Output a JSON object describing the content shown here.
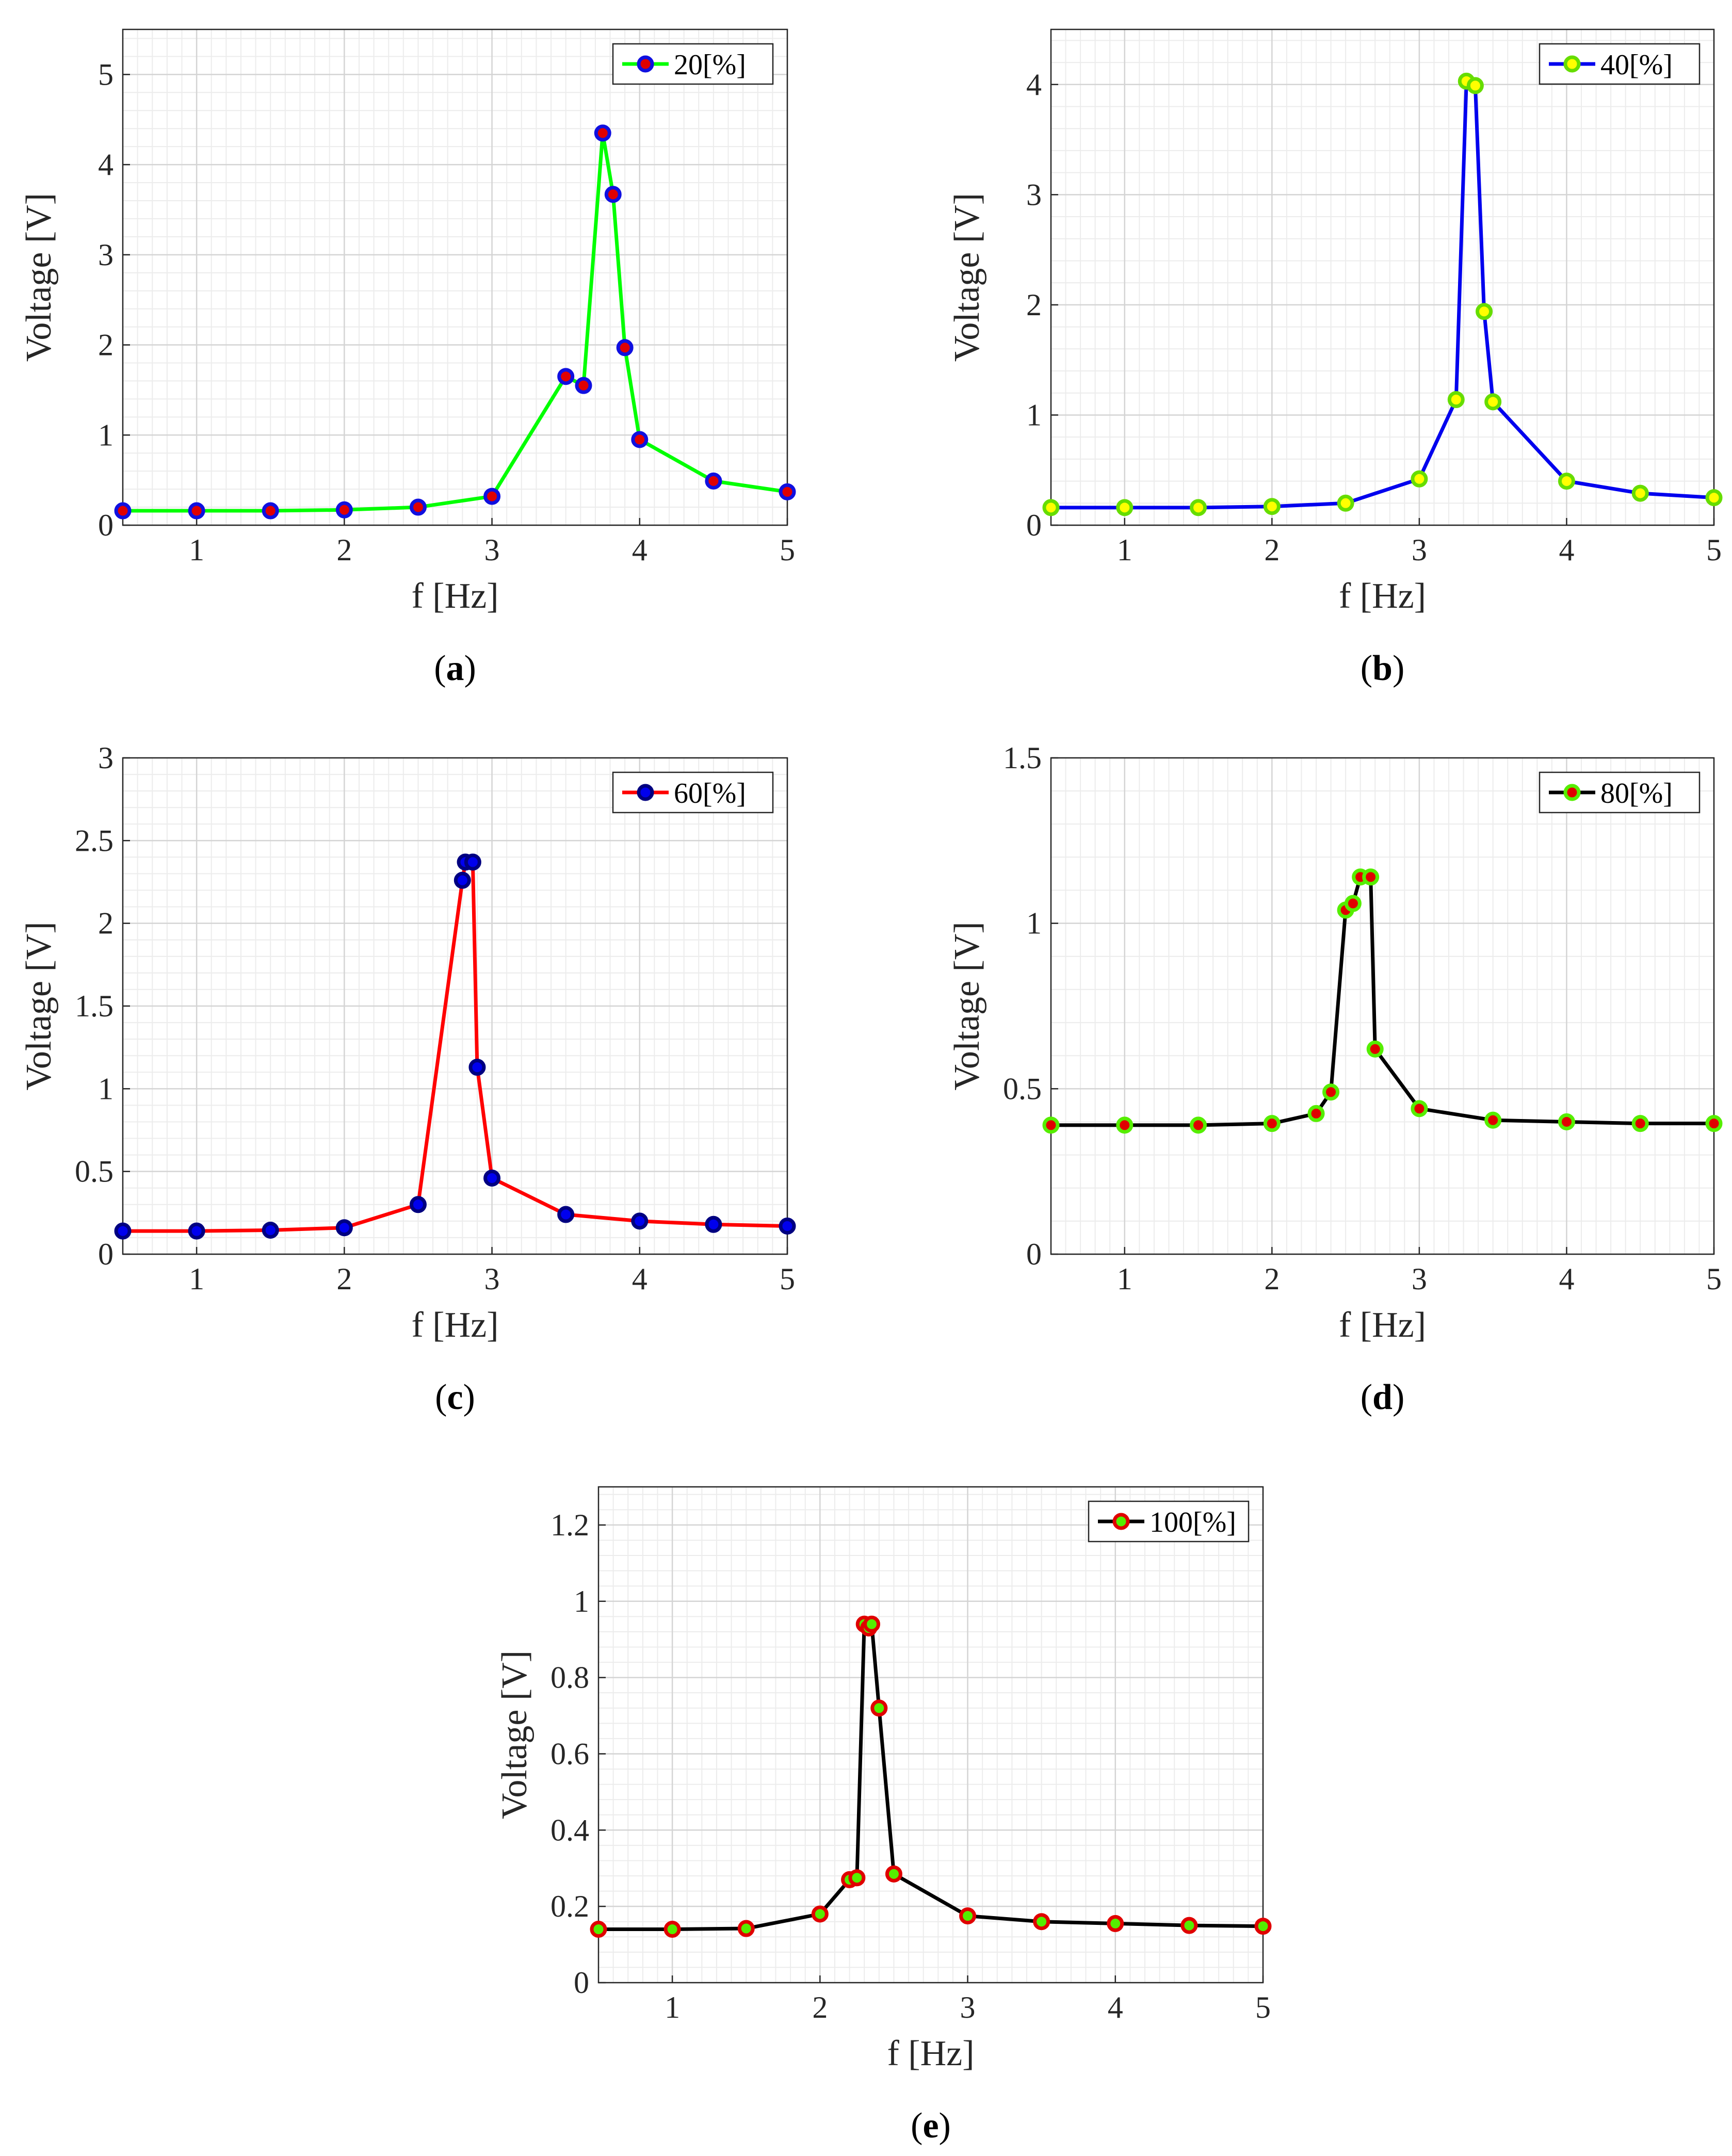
{
  "chart_data": [
    {
      "type": "line",
      "caption_letter": "a",
      "xlabel": "f [Hz]",
      "ylabel": "Voltage [V]",
      "xlim": [
        0.5,
        5
      ],
      "ylim": [
        0,
        5.5
      ],
      "xticks": [
        1,
        2,
        3,
        4,
        5
      ],
      "yticks": [
        0,
        1,
        2,
        3,
        4,
        5
      ],
      "grid": true,
      "legend_position": "top-right",
      "series": [
        {
          "name": "20[%]",
          "line_color": "#00ff00",
          "marker_face": "#e00000",
          "marker_edge": "#1010e0",
          "x": [
            0.5,
            1,
            1.5,
            2,
            2.5,
            3,
            3.5,
            3.62,
            3.75,
            3.82,
            3.9,
            4,
            4.5,
            5
          ],
          "y": [
            0.16,
            0.16,
            0.16,
            0.17,
            0.2,
            0.32,
            1.65,
            1.55,
            4.35,
            3.67,
            1.97,
            0.95,
            0.49,
            0.37
          ]
        }
      ]
    },
    {
      "type": "line",
      "caption_letter": "b",
      "xlabel": "f [Hz]",
      "ylabel": "Voltage [V]",
      "xlim": [
        0.5,
        5
      ],
      "ylim": [
        0,
        4.5
      ],
      "xticks": [
        1,
        2,
        3,
        4,
        5
      ],
      "yticks": [
        0,
        1,
        2,
        3,
        4
      ],
      "grid": true,
      "legend_position": "top-right",
      "series": [
        {
          "name": "40[%]",
          "line_color": "#0000ee",
          "marker_face": "#ffff00",
          "marker_edge": "#66dd00",
          "x": [
            0.5,
            1,
            1.5,
            2,
            2.5,
            3,
            3.25,
            3.32,
            3.38,
            3.44,
            3.5,
            4,
            4.5,
            5
          ],
          "y": [
            0.16,
            0.16,
            0.16,
            0.17,
            0.2,
            0.42,
            1.14,
            4.03,
            3.99,
            1.94,
            1.12,
            0.4,
            0.29,
            0.25
          ]
        }
      ]
    },
    {
      "type": "line",
      "caption_letter": "c",
      "xlabel": "f [Hz]",
      "ylabel": "Voltage [V]",
      "xlim": [
        0.5,
        5
      ],
      "ylim": [
        0,
        3
      ],
      "xticks": [
        1,
        2,
        3,
        4,
        5
      ],
      "yticks": [
        0,
        0.5,
        1,
        1.5,
        2,
        2.5,
        3
      ],
      "grid": true,
      "legend_position": "top-right",
      "series": [
        {
          "name": "60[%]",
          "line_color": "#ff0000",
          "marker_face": "#0000ee",
          "marker_edge": "#000080",
          "x": [
            0.5,
            1,
            1.5,
            2,
            2.5,
            2.8,
            2.82,
            2.87,
            2.9,
            3,
            3.5,
            4,
            4.5,
            5
          ],
          "y": [
            0.14,
            0.14,
            0.145,
            0.16,
            0.3,
            2.26,
            2.37,
            2.37,
            1.13,
            0.46,
            0.24,
            0.2,
            0.18,
            0.17
          ]
        }
      ]
    },
    {
      "type": "line",
      "caption_letter": "d",
      "xlabel": "f [Hz]",
      "ylabel": "Voltage [V]",
      "xlim": [
        0.5,
        5
      ],
      "ylim": [
        0,
        1.5
      ],
      "xticks": [
        1,
        2,
        3,
        4,
        5
      ],
      "yticks": [
        0,
        0.5,
        1,
        1.5
      ],
      "grid": true,
      "legend_position": "top-right",
      "series": [
        {
          "name": "80[%]",
          "line_color": "#000000",
          "marker_face": "#e00000",
          "marker_edge": "#55ee00",
          "x": [
            0.5,
            1,
            1.5,
            2,
            2.3,
            2.4,
            2.5,
            2.55,
            2.6,
            2.67,
            2.7,
            3,
            3.5,
            4,
            4.5,
            5
          ],
          "y": [
            0.39,
            0.39,
            0.39,
            0.395,
            0.425,
            0.49,
            1.04,
            1.06,
            1.14,
            1.14,
            0.62,
            0.44,
            0.405,
            0.4,
            0.395,
            0.395
          ]
        }
      ]
    },
    {
      "type": "line",
      "caption_letter": "e",
      "xlabel": "f [Hz]",
      "ylabel": "Voltage [V]",
      "xlim": [
        0.5,
        5
      ],
      "ylim": [
        0,
        1.3
      ],
      "xticks": [
        1,
        2,
        3,
        4,
        5
      ],
      "yticks": [
        0,
        0.2,
        0.4,
        0.6,
        0.8,
        1,
        1.2
      ],
      "grid": true,
      "legend_position": "top-right",
      "series": [
        {
          "name": "100[%]",
          "line_color": "#000000",
          "marker_face": "#55ee00",
          "marker_edge": "#e00000",
          "x": [
            0.5,
            1,
            1.5,
            2,
            2.2,
            2.25,
            2.3,
            2.33,
            2.35,
            2.4,
            2.5,
            3,
            3.5,
            4,
            4.5,
            5
          ],
          "y": [
            0.14,
            0.14,
            0.142,
            0.18,
            0.27,
            0.275,
            0.94,
            0.93,
            0.94,
            0.72,
            0.285,
            0.175,
            0.16,
            0.155,
            0.15,
            0.148
          ]
        }
      ]
    }
  ]
}
